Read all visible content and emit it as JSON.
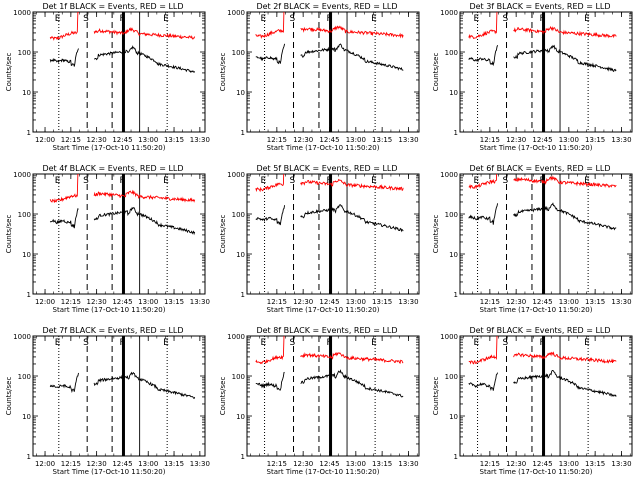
{
  "chart_data": {
    "type": "line",
    "series_names": [
      "Events",
      "LLD"
    ],
    "series_colors": [
      "#000000",
      "#ff0000"
    ],
    "xlabel": "Start Time (17-Oct-10 11:50:20)",
    "ylabel": "Counts/sec",
    "y_scale": "log",
    "ylim": [
      1,
      1000
    ],
    "y_ticks": [
      {
        "v": 1,
        "label": "1"
      },
      {
        "v": 10,
        "label": "10"
      },
      {
        "v": 100,
        "label": "100"
      },
      {
        "v": 1000,
        "label": "1000"
      }
    ],
    "x_ticks_min": [
      10,
      25,
      40,
      55,
      70,
      85,
      100
    ],
    "x_tick_labels_a": [
      "12:00",
      "12:15",
      "12:30",
      "12:45",
      "13:00",
      "13:15",
      "13:30"
    ],
    "x_tick_labels_b": [
      "12:15",
      "12:30",
      "12:45",
      "13:00",
      "13:15",
      "13:30"
    ],
    "markers": [
      {
        "t": 18,
        "style": "dotted",
        "label": "E"
      },
      {
        "t": 34.5,
        "style": "dashed",
        "label": "S"
      },
      {
        "t": 49,
        "style": "dashed",
        "label": ""
      },
      {
        "t": 55.6,
        "style": "thick",
        "label": "F"
      },
      {
        "t": 65,
        "style": "solid",
        "label": ""
      },
      {
        "t": 81,
        "style": "dotted",
        "label": "E"
      }
    ],
    "panels": [
      {
        "title": "Det 1f BLACK = Events, RED = LLD",
        "xmin": 3,
        "xmax": 103,
        "labels": "a",
        "ev_base": 60,
        "lld_base": 230,
        "lld": true
      },
      {
        "title": "Det 2f BLACK = Events, RED = LLD",
        "xmin": 8,
        "xmax": 106,
        "labels": "b",
        "ev_base": 70,
        "lld_base": 260,
        "lld": true
      },
      {
        "title": "Det 3f BLACK = Events, RED = LLD",
        "xmin": 8,
        "xmax": 106,
        "labels": "b",
        "ev_base": 65,
        "lld_base": 250,
        "lld": true
      },
      {
        "title": "Det 4f BLACK = Events, RED = LLD",
        "xmin": 3,
        "xmax": 103,
        "labels": "a",
        "ev_base": 65,
        "lld_base": 220,
        "lld": true
      },
      {
        "title": "Det 5f BLACK = Events, RED = LLD",
        "xmin": 8,
        "xmax": 106,
        "labels": "b",
        "ev_base": 75,
        "lld_base": 430,
        "lld": true
      },
      {
        "title": "Det 6f BLACK = Events, RED = LLD",
        "xmin": 8,
        "xmax": 106,
        "labels": "b",
        "ev_base": 80,
        "lld_base": 500,
        "lld": true
      },
      {
        "title": "Det 7f BLACK = Events, RED = LLD",
        "xmin": 3,
        "xmax": 103,
        "labels": "a",
        "ev_base": 55,
        "lld_base": 0,
        "lld": false
      },
      {
        "title": "Det 8f BLACK = Events, RED = LLD",
        "xmin": 8,
        "xmax": 106,
        "labels": "b",
        "ev_base": 60,
        "lld_base": 230,
        "lld": true
      },
      {
        "title": "Det 9f BLACK = Events, RED = LLD",
        "xmin": 8,
        "xmax": 106,
        "labels": "b",
        "ev_base": 60,
        "lld_base": 230,
        "lld": true
      }
    ]
  }
}
